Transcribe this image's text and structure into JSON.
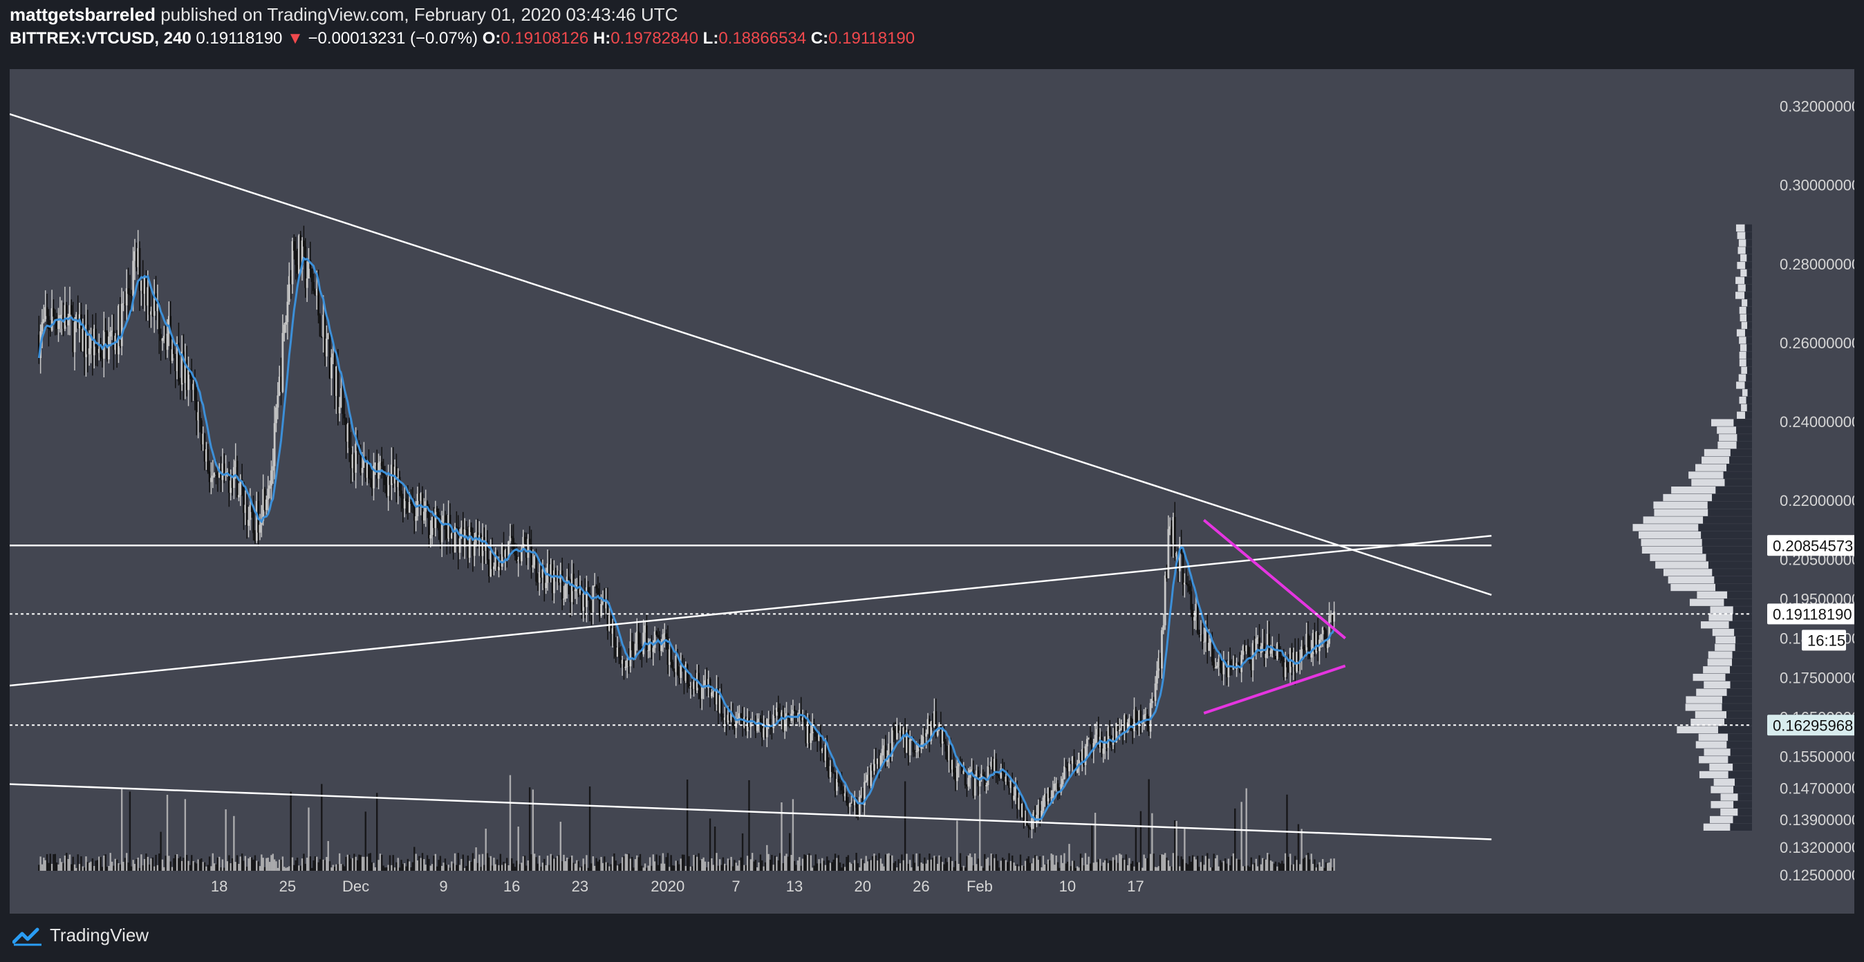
{
  "header": {
    "author": "mattgetsbarreled",
    "published_text": "published on TradingView.com, February 01, 2020 03:43:46 UTC",
    "symbol": "BITTREX:VTCUSD, 240",
    "last": "0.19118190",
    "arrow": "▼",
    "change": "−0.00013231 (−0.07%)",
    "o_label": "O:",
    "o": "0.19108126",
    "h_label": "H:",
    "h": "0.19782840",
    "l_label": "L:",
    "l": "0.18866534",
    "c_label": "C:",
    "c": "0.19118190"
  },
  "footer": {
    "brand": "TradingView"
  },
  "colors": {
    "background": "#434651",
    "bull": "#c8c8c8",
    "bear": "#111111",
    "ma": "#3c8fd8",
    "trend": "#ffffff",
    "triangle": "#e535e0"
  },
  "chart_data": {
    "type": "candlestick",
    "symbol": "BITTREX:VTCUSD",
    "interval": "240",
    "ylim": [
      0.119,
      0.328
    ],
    "y_ticks": [
      "0.32000000",
      "0.30000000",
      "0.28000000",
      "0.26000000",
      "0.24000000",
      "0.22000000",
      "0.20500000",
      "0.19500000",
      "0.18500000",
      "0.17500000",
      "0.16500000",
      "0.15500000",
      "0.14700000",
      "0.13900000",
      "0.13200000",
      "0.12500000"
    ],
    "x_ticks": [
      "18",
      "25",
      "Dec",
      "9",
      "16",
      "23",
      "2020",
      "7",
      "13",
      "20",
      "26",
      "Feb",
      "10",
      "17"
    ],
    "price_labels": [
      {
        "value": "0.20854573",
        "style": "white"
      },
      {
        "value": "0.19118190",
        "style": "white"
      },
      {
        "time": "16:15"
      },
      {
        "value": "0.16295968",
        "style": "teal"
      }
    ],
    "close_path_days": [
      [
        0,
        0.262
      ],
      [
        2,
        0.268
      ],
      [
        4,
        0.262
      ],
      [
        6,
        0.258
      ],
      [
        8,
        0.262
      ],
      [
        10,
        0.28
      ],
      [
        12,
        0.268
      ],
      [
        14,
        0.258
      ],
      [
        16,
        0.245
      ],
      [
        18,
        0.222
      ],
      [
        20,
        0.228
      ],
      [
        22,
        0.212
      ],
      [
        24,
        0.23
      ],
      [
        26,
        0.285
      ],
      [
        28,
        0.275
      ],
      [
        30,
        0.255
      ],
      [
        32,
        0.232
      ],
      [
        34,
        0.228
      ],
      [
        36,
        0.225
      ],
      [
        38,
        0.22
      ],
      [
        40,
        0.215
      ],
      [
        42,
        0.212
      ],
      [
        44,
        0.21
      ],
      [
        46,
        0.205
      ],
      [
        48,
        0.207
      ],
      [
        50,
        0.208
      ],
      [
        52,
        0.2
      ],
      [
        54,
        0.198
      ],
      [
        56,
        0.196
      ],
      [
        58,
        0.193
      ],
      [
        60,
        0.178
      ],
      [
        62,
        0.185
      ],
      [
        64,
        0.183
      ],
      [
        66,
        0.178
      ],
      [
        68,
        0.173
      ],
      [
        70,
        0.168
      ],
      [
        72,
        0.165
      ],
      [
        74,
        0.163
      ],
      [
        76,
        0.165
      ],
      [
        78,
        0.164
      ],
      [
        80,
        0.158
      ],
      [
        82,
        0.148
      ],
      [
        84,
        0.142
      ],
      [
        86,
        0.155
      ],
      [
        88,
        0.16
      ],
      [
        90,
        0.157
      ],
      [
        92,
        0.164
      ],
      [
        94,
        0.152
      ],
      [
        96,
        0.148
      ],
      [
        98,
        0.152
      ],
      [
        100,
        0.145
      ],
      [
        102,
        0.138
      ],
      [
        104,
        0.146
      ],
      [
        106,
        0.152
      ],
      [
        108,
        0.158
      ],
      [
        110,
        0.16
      ],
      [
        112,
        0.163
      ],
      [
        114,
        0.165
      ],
      [
        115,
        0.178
      ],
      [
        116,
        0.215
      ],
      [
        117,
        0.205
      ],
      [
        118,
        0.195
      ],
      [
        120,
        0.182
      ],
      [
        122,
        0.178
      ],
      [
        124,
        0.18
      ],
      [
        126,
        0.183
      ],
      [
        128,
        0.178
      ],
      [
        130,
        0.182
      ],
      [
        132,
        0.185
      ],
      [
        133,
        0.191
      ]
    ],
    "trendlines": [
      {
        "name": "upper-resistance",
        "from": [
          -3,
          0.318
        ],
        "to": [
          149,
          0.196
        ]
      },
      {
        "name": "lower-support",
        "from": [
          -3,
          0.148
        ],
        "to": [
          149,
          0.134
        ]
      },
      {
        "name": "rising-line",
        "from": [
          -3,
          0.173
        ],
        "to": [
          149,
          0.211
        ]
      },
      {
        "name": "horizontal-level",
        "from": [
          -3,
          0.20854573
        ],
        "to": [
          149,
          0.20854573
        ]
      }
    ],
    "triangle": [
      {
        "name": "triangle-top",
        "from": [
          119.5,
          0.215
        ],
        "to": [
          134,
          0.185
        ]
      },
      {
        "name": "triangle-bottom",
        "from": [
          119.5,
          0.166
        ],
        "to": [
          134,
          0.178
        ]
      }
    ],
    "dotted_levels": [
      0.1911819,
      0.16295968
    ]
  }
}
